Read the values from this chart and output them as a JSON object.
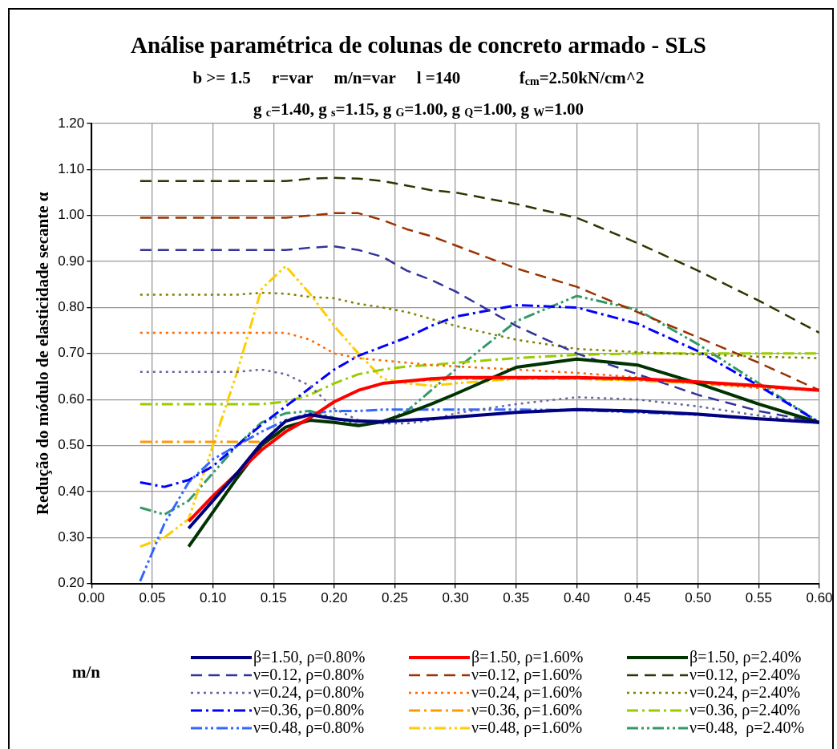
{
  "chart_data": {
    "type": "line",
    "title": "Análise paramétrica de colunas de concreto armado - SLS",
    "subtitle": "b >= 1.5     r=var     m/n=var     l =140              f$_{cm}$=2.50kN/cm^2\ng $_{c}$=1.40, g $_{s}$=1.15, g $_{G}$=1.00, g $_{Q}$=1.00, g $_{W}$=1.00",
    "xlabel": "m/n",
    "ylabel": "Redução do módulo de elasticidade secante α",
    "x": [
      0.04,
      0.06,
      0.08,
      0.1,
      0.12,
      0.14,
      0.16,
      0.18,
      0.2,
      0.22,
      0.24,
      0.26,
      0.28,
      0.3,
      0.35,
      0.4,
      0.45,
      0.5,
      0.55,
      0.6
    ],
    "xlim": [
      0,
      0.6
    ],
    "xticks": [
      {
        "value": 0,
        "label": "0.00"
      },
      {
        "value": 0.05,
        "label": "0.05"
      },
      {
        "value": 0.1,
        "label": "0.10"
      },
      {
        "value": 0.15,
        "label": "0.15"
      },
      {
        "value": 0.2,
        "label": "0.20"
      },
      {
        "value": 0.25,
        "label": "0.25"
      },
      {
        "value": 0.3,
        "label": "0.30"
      },
      {
        "value": 0.35,
        "label": "0.35"
      },
      {
        "value": 0.4,
        "label": "0.40"
      },
      {
        "value": 0.45,
        "label": "0.45"
      },
      {
        "value": 0.5,
        "label": "0.50"
      },
      {
        "value": 0.55,
        "label": "0.55"
      },
      {
        "value": 0.6,
        "label": "0.60"
      }
    ],
    "ylim": [
      0.2,
      1.2
    ],
    "yticks": [
      {
        "value": 0.2,
        "label": "0.20"
      },
      {
        "value": 0.3,
        "label": "0.30"
      },
      {
        "value": 0.4,
        "label": "0.40"
      },
      {
        "value": 0.5,
        "label": "0.50"
      },
      {
        "value": 0.6,
        "label": "0.60"
      },
      {
        "value": 0.7,
        "label": "0.70"
      },
      {
        "value": 0.8,
        "label": "0.80"
      },
      {
        "value": 0.9,
        "label": "0.90"
      },
      {
        "value": 1.0,
        "label": "1.00"
      },
      {
        "value": 1.1,
        "label": "1.10"
      },
      {
        "value": 1.2,
        "label": "1.20"
      }
    ],
    "grid": true,
    "legend": "bottom",
    "marker": "none",
    "series": [
      {
        "name": "β=1.50, ρ=0.80%",
        "color": "#000080",
        "line_style": "solid",
        "values": [
          null,
          null,
          0.32,
          0.38,
          0.44,
          0.505,
          0.553,
          0.567,
          0.558,
          0.553,
          0.552,
          0.555,
          0.558,
          0.562,
          0.572,
          0.578,
          0.575,
          0.568,
          0.558,
          0.55
        ]
      },
      {
        "name": "β=1.50, ρ=1.60%",
        "color": "#ff0000",
        "line_style": "solid",
        "values": [
          null,
          null,
          0.335,
          0.39,
          0.44,
          0.49,
          0.53,
          0.56,
          0.595,
          0.62,
          0.635,
          0.64,
          0.645,
          0.648,
          0.648,
          0.648,
          0.645,
          0.638,
          0.63,
          0.62
        ]
      },
      {
        "name": "β=1.50, ρ=2.40%",
        "color": "#003300",
        "line_style": "solid",
        "values": [
          null,
          null,
          0.28,
          0.355,
          0.43,
          0.5,
          0.54,
          0.555,
          0.55,
          0.543,
          0.552,
          0.57,
          0.59,
          0.612,
          0.67,
          0.688,
          0.675,
          0.635,
          0.59,
          0.55
        ]
      },
      {
        "name": "ν=0.12, ρ=0.80%",
        "color": "#333399",
        "line_style": "dashed",
        "values": [
          0.925,
          0.925,
          0.925,
          0.925,
          0.925,
          0.925,
          0.925,
          0.93,
          0.933,
          0.925,
          0.91,
          0.88,
          0.86,
          0.835,
          0.76,
          0.7,
          0.655,
          0.61,
          0.575,
          0.55
        ]
      },
      {
        "name": "ν=0.12, ρ=1.60%",
        "color": "#993300",
        "line_style": "dashed",
        "values": [
          0.995,
          0.995,
          0.995,
          0.995,
          0.995,
          0.995,
          0.995,
          1.0,
          1.005,
          1.005,
          0.99,
          0.97,
          0.955,
          0.935,
          0.885,
          0.845,
          0.79,
          0.735,
          0.68,
          0.62
        ]
      },
      {
        "name": "ν=0.12, ρ=2.40%",
        "color": "#333300",
        "line_style": "dashed",
        "values": [
          1.075,
          1.075,
          1.075,
          1.075,
          1.075,
          1.075,
          1.075,
          1.08,
          1.082,
          1.08,
          1.075,
          1.065,
          1.055,
          1.05,
          1.025,
          0.995,
          0.94,
          0.88,
          0.815,
          0.745
        ]
      },
      {
        "name": "ν=0.24, ρ=0.80%",
        "color": "#666699",
        "line_style": "dotted",
        "values": [
          0.66,
          0.66,
          0.66,
          0.66,
          0.66,
          0.665,
          0.655,
          0.63,
          0.58,
          0.555,
          0.548,
          0.548,
          0.555,
          0.57,
          0.59,
          0.605,
          0.6,
          0.585,
          0.565,
          0.55
        ]
      },
      {
        "name": "ν=0.24, ρ=1.60%",
        "color": "#ff6600",
        "line_style": "dotted",
        "values": [
          0.745,
          0.745,
          0.745,
          0.745,
          0.745,
          0.745,
          0.745,
          0.73,
          0.7,
          0.69,
          0.685,
          0.68,
          0.675,
          0.672,
          0.665,
          0.658,
          0.648,
          0.635,
          0.625,
          0.62
        ]
      },
      {
        "name": "ν=0.24, ρ=2.40%",
        "color": "#808000",
        "line_style": "dotted",
        "values": [
          0.828,
          0.828,
          0.828,
          0.828,
          0.828,
          0.832,
          0.83,
          0.823,
          0.82,
          0.808,
          0.8,
          0.79,
          0.775,
          0.76,
          0.73,
          0.71,
          0.703,
          0.698,
          0.693,
          0.69
        ]
      },
      {
        "name": "ν=0.36, ρ=0.80%",
        "color": "#0000ff",
        "line_style": "dashdot",
        "values": [
          0.42,
          0.41,
          0.425,
          0.455,
          0.5,
          0.545,
          0.585,
          0.625,
          0.665,
          0.695,
          0.715,
          0.735,
          0.76,
          0.78,
          0.805,
          0.8,
          0.765,
          0.705,
          0.63,
          0.55
        ]
      },
      {
        "name": "ν=0.36, ρ=1.60%",
        "color": "#ff9900",
        "line_style": "dashdot",
        "values": [
          0.508,
          0.508,
          0.508,
          0.508,
          0.508,
          0.508,
          0.53,
          0.56,
          0.595,
          0.62,
          0.635,
          0.64,
          0.642,
          0.645,
          0.645,
          0.645,
          0.642,
          0.635,
          0.628,
          0.62
        ]
      },
      {
        "name": "ν=0.36, ρ=2.40%",
        "color": "#99cc00",
        "line_style": "dashdot",
        "values": [
          0.59,
          0.59,
          0.59,
          0.59,
          0.59,
          0.59,
          0.595,
          0.61,
          0.635,
          0.655,
          0.665,
          0.672,
          0.675,
          0.68,
          0.69,
          0.697,
          0.7,
          0.7,
          0.7,
          0.7
        ]
      },
      {
        "name": "ν=0.48, ρ=0.80%",
        "color": "#3366ff",
        "line_style": "dashdotdot",
        "values": [
          0.205,
          0.33,
          0.42,
          0.47,
          0.5,
          0.53,
          0.555,
          0.57,
          0.575,
          0.575,
          0.578,
          0.578,
          0.578,
          0.578,
          0.578,
          0.577,
          0.572,
          0.567,
          0.558,
          0.55
        ]
      },
      {
        "name": "ν=0.48, ρ=1.60%",
        "color": "#ffcc00",
        "line_style": "dashdotdot",
        "values": [
          0.28,
          0.3,
          0.34,
          0.5,
          0.66,
          0.84,
          0.89,
          0.83,
          0.76,
          0.7,
          0.645,
          0.635,
          0.63,
          0.635,
          0.645,
          0.645,
          0.642,
          0.635,
          0.628,
          0.62
        ]
      },
      {
        "name": "ν=0.48,  ρ=2.40%",
        "color": "#339966",
        "line_style": "dashdotdot",
        "values": [
          0.365,
          0.35,
          0.38,
          0.44,
          0.5,
          0.55,
          0.57,
          0.575,
          0.56,
          0.545,
          0.55,
          0.575,
          0.62,
          0.665,
          0.77,
          0.825,
          0.795,
          0.72,
          0.635,
          0.55
        ]
      }
    ]
  }
}
